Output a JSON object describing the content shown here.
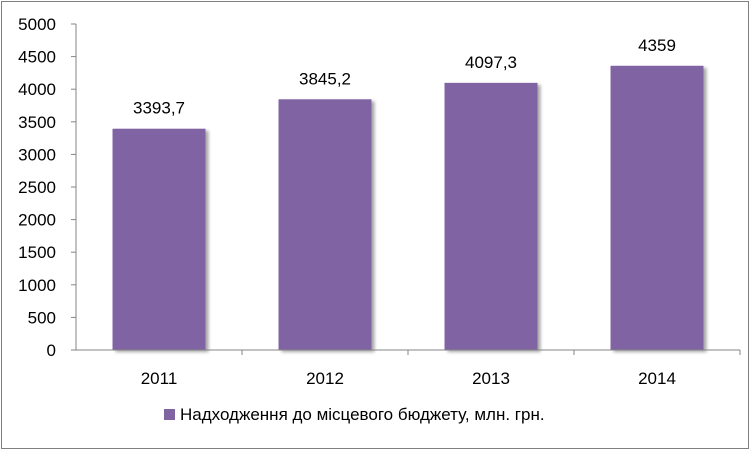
{
  "chart_data": {
    "type": "bar",
    "categories": [
      "2011",
      "2012",
      "2013",
      "2014"
    ],
    "series": [
      {
        "name": "Надходження до місцевого бюджету, млн. грн.",
        "values": [
          3393.7,
          3845.2,
          4097.3,
          4359
        ],
        "value_labels": [
          "3393,7",
          "3845,2",
          "4097,3",
          "4359"
        ],
        "color": "#8064a2"
      }
    ],
    "y_ticks": [
      "0",
      "500",
      "1000",
      "1500",
      "2000",
      "2500",
      "3000",
      "3500",
      "4000",
      "4500",
      "5000"
    ],
    "ylim": [
      0,
      5000
    ],
    "grid": false,
    "legend_position": "bottom"
  }
}
